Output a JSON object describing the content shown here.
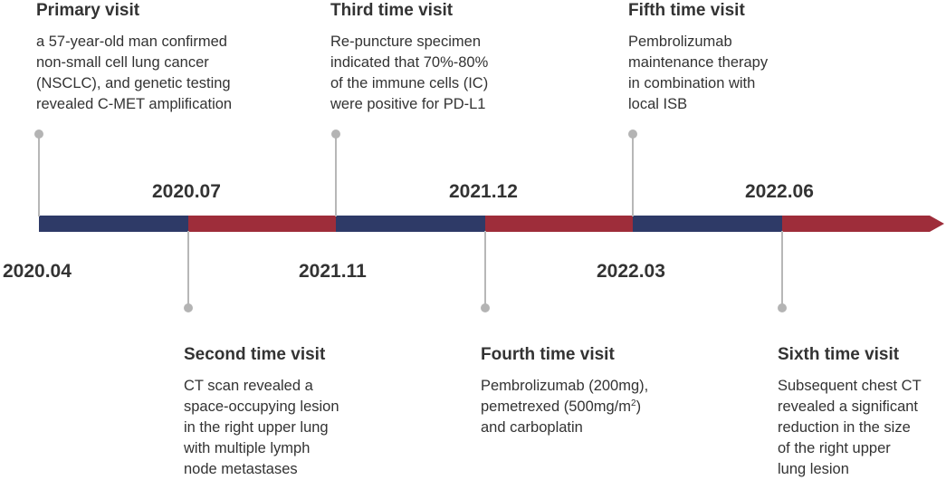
{
  "colors": {
    "navy": "#2e3a67",
    "crimson": "#9e2d3a",
    "connector": "#b7b7b7"
  },
  "dates": [
    "2020.04",
    "2020.07",
    "2021.11",
    "2021.12",
    "2022.03",
    "2022.06"
  ],
  "events": [
    {
      "title": "Primary visit",
      "lines": [
        "a 57-year-old man  confirmed",
        "non-small cell lung cancer",
        "(NSCLC), and genetic testing",
        "revealed C-MET amplification"
      ]
    },
    {
      "title": "Second time visit",
      "lines": [
        "CT scan revealed a",
        "space-occupying lesion",
        "in the right upper lung",
        "with multiple lymph",
        "node metastases"
      ]
    },
    {
      "title": "Third time visit",
      "lines": [
        "Re-puncture specimen",
        "indicated that 70%-80%",
        "of the immune cells (IC)",
        "were positive for PD-L1"
      ]
    },
    {
      "title": "Fourth time visit",
      "lines": [
        "Pembrolizumab (200mg),",
        "pemetrexed (500mg/m",
        "and carboplatin"
      ],
      "line2_sup": "2",
      "line2_tail": ")"
    },
    {
      "title": "Fifth time visit",
      "lines": [
        "Pembrolizumab",
        "maintenance therapy",
        "in combination with",
        "local ISB"
      ]
    },
    {
      "title": "Sixth time visit",
      "lines": [
        "Subsequent chest CT",
        "revealed a significant",
        "reduction in the size",
        "of the right upper",
        "lung lesion"
      ]
    }
  ]
}
